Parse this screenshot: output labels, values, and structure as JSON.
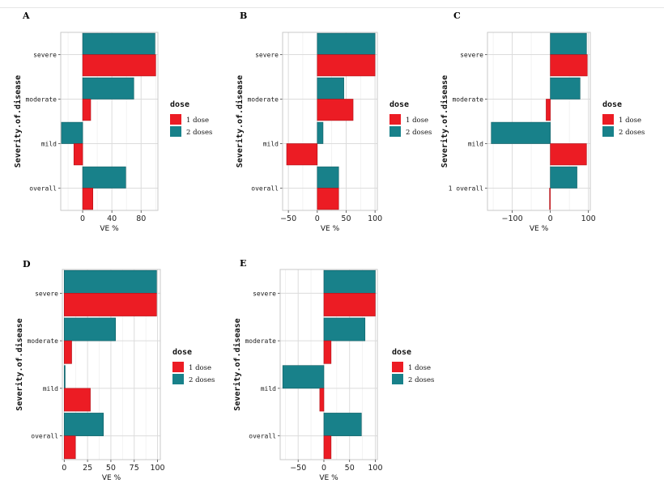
{
  "colors": {
    "one_dose": "#ec1c24",
    "two_doses": "#18818a"
  },
  "legend": {
    "title": "dose",
    "one_dose_label": "1 dose",
    "two_doses_label": "2 doses"
  },
  "chart_data": [
    {
      "type": "bar",
      "panel": "A",
      "orientation": "horizontal",
      "categories": [
        "severe",
        "moderate",
        "mild",
        "overall"
      ],
      "ylabel": "Severity.of.disease",
      "xlabel": "VE %",
      "xlim": [
        -30,
        103
      ],
      "xticks": [
        0,
        40,
        80
      ],
      "series": [
        {
          "name": "1 dose",
          "values": [
            100,
            11,
            -12,
            14
          ]
        },
        {
          "name": "2 doses",
          "values": [
            99,
            70,
            -29,
            59
          ]
        }
      ]
    },
    {
      "type": "bar",
      "panel": "B",
      "orientation": "horizontal",
      "categories": [
        "severe",
        "moderate",
        "mild",
        "overall"
      ],
      "ylabel": "Severity.of.disease",
      "xlabel": "VE %",
      "xlim": [
        -60,
        104
      ],
      "xticks": [
        -50,
        0,
        50,
        100
      ],
      "series": [
        {
          "name": "1 dose",
          "values": [
            100,
            62,
            -53,
            37
          ]
        },
        {
          "name": "2 doses",
          "values": [
            100,
            46,
            10,
            37
          ]
        }
      ]
    },
    {
      "type": "bar",
      "panel": "C",
      "orientation": "horizontal",
      "categories": [
        "severe",
        "moderate",
        "mild",
        "1 overall"
      ],
      "ylabel": "Severity.of.disease",
      "xlabel": "VE %",
      "xlim": [
        -165,
        105
      ],
      "xticks": [
        -100,
        0,
        100
      ],
      "series": [
        {
          "name": "1 dose",
          "values": [
            97,
            -11,
            95,
            -2
          ]
        },
        {
          "name": "2 doses",
          "values": [
            95,
            78,
            -155,
            70
          ]
        }
      ]
    },
    {
      "type": "bar",
      "panel": "D",
      "orientation": "horizontal",
      "categories": [
        "severe",
        "moderate",
        "mild",
        "overall"
      ],
      "ylabel": "Severity.of.disease",
      "xlabel": "VE %",
      "xlim": [
        -2,
        103
      ],
      "xticks": [
        0,
        25,
        50,
        75,
        100
      ],
      "series": [
        {
          "name": "1 dose",
          "values": [
            99,
            8,
            28,
            12
          ]
        },
        {
          "name": "2 doses",
          "values": [
            99,
            55,
            1,
            42
          ]
        }
      ]
    },
    {
      "type": "bar",
      "panel": "E",
      "orientation": "horizontal",
      "categories": [
        "severe",
        "moderate",
        "mild",
        "overall"
      ],
      "ylabel": "Severity.of.disease",
      "xlabel": "VE %",
      "xlim": [
        -85,
        104
      ],
      "xticks": [
        -50,
        0,
        50,
        100
      ],
      "series": [
        {
          "name": "1 dose",
          "values": [
            100,
            14,
            -8,
            14
          ]
        },
        {
          "name": "2 doses",
          "values": [
            100,
            80,
            -80,
            73
          ]
        }
      ]
    }
  ]
}
